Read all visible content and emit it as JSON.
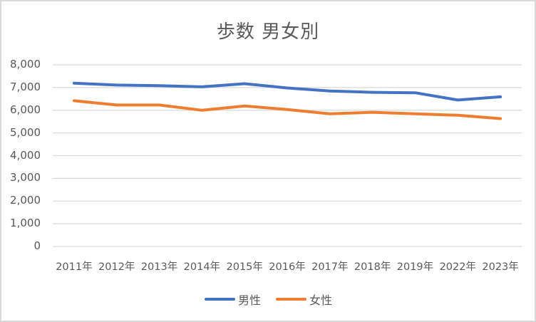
{
  "chart_data": {
    "type": "line",
    "title": "歩数 男女別",
    "xlabel": "",
    "ylabel": "",
    "categories": [
      "2011年",
      "2012年",
      "2013年",
      "2014年",
      "2015年",
      "2016年",
      "2017年",
      "2018年",
      "2019年",
      "2022年",
      "2023年"
    ],
    "series": [
      {
        "name": "男性",
        "color": "#4472C4",
        "values": [
          7190,
          7110,
          7080,
          7030,
          7170,
          6980,
          6850,
          6790,
          6770,
          6450,
          6590
        ]
      },
      {
        "name": "女性",
        "color": "#ED7D31",
        "values": [
          6420,
          6230,
          6230,
          6000,
          6190,
          6030,
          5840,
          5910,
          5840,
          5780,
          5630
        ]
      }
    ],
    "ylim": [
      0,
      8000
    ],
    "yticks": [
      0,
      1000,
      2000,
      3000,
      4000,
      5000,
      6000,
      7000,
      8000
    ],
    "ytick_labels": [
      "0",
      "1,000",
      "2,000",
      "3,000",
      "4,000",
      "5,000",
      "6,000",
      "7,000",
      "8,000"
    ],
    "grid": true,
    "legend_position": "bottom"
  },
  "colors": {
    "gridline": "#d9d9d9",
    "text": "#595959",
    "border": "#d9d9d9"
  }
}
